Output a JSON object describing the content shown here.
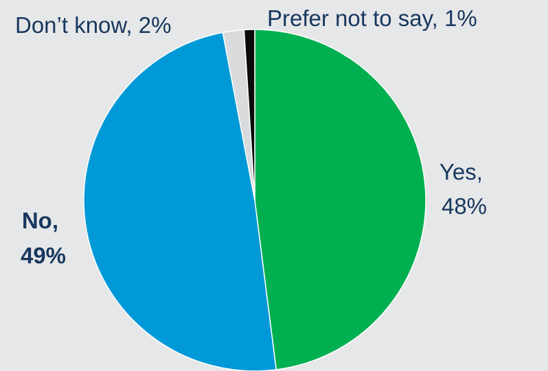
{
  "chart_data": {
    "type": "pie",
    "slices": [
      {
        "label": "Yes",
        "value": 48,
        "color": "#00b050",
        "label_lines": [
          "Yes,",
          "48%"
        ],
        "bold": false
      },
      {
        "label": "No",
        "value": 49,
        "color": "#0099d8",
        "label_lines": [
          "No,",
          "49%"
        ],
        "bold": true
      },
      {
        "label": "Don’t know",
        "value": 2,
        "color": "#d9dadb",
        "label_lines": [
          "Don’t know, 2%"
        ],
        "bold": false
      },
      {
        "label": "Prefer not to say",
        "value": 1,
        "color": "#0a0a0a",
        "label_lines": [
          "Prefer not to say, 1%"
        ],
        "bold": false
      }
    ],
    "start_angle": "top",
    "direction": "clockwise",
    "background": "#e6e7e8",
    "label_color": "#17375e"
  }
}
